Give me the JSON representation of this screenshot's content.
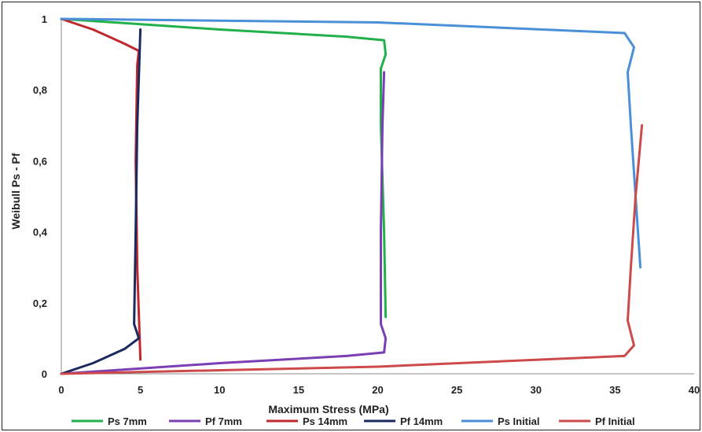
{
  "chart_data": {
    "type": "line",
    "title": "",
    "xlabel": "Maximum Stress  (MPa)",
    "ylabel": "Weibull Ps - Pf",
    "xlim": [
      0,
      40
    ],
    "ylim": [
      0,
      1
    ],
    "x_ticks": [
      "0",
      "5",
      "10",
      "15",
      "20",
      "25",
      "30",
      "35",
      "40"
    ],
    "y_ticks": [
      "0",
      "0,2",
      "0,4",
      "0,6",
      "0,8",
      "1"
    ],
    "grid": false,
    "legend_position": "bottom",
    "series": [
      {
        "name": "Ps 7mm",
        "color": "#22b04b",
        "points": [
          [
            0,
            1
          ],
          [
            10,
            0.97
          ],
          [
            18,
            0.95
          ],
          [
            20.4,
            0.94
          ],
          [
            20.5,
            0.9
          ],
          [
            20.2,
            0.86
          ],
          [
            20.2,
            0.7
          ],
          [
            20.4,
            0.4
          ],
          [
            20.5,
            0.16
          ]
        ]
      },
      {
        "name": "Pf 7mm",
        "color": "#7b3fb5",
        "points": [
          [
            0,
            0
          ],
          [
            10,
            0.03
          ],
          [
            18,
            0.05
          ],
          [
            20.4,
            0.06
          ],
          [
            20.5,
            0.1
          ],
          [
            20.2,
            0.14
          ],
          [
            20.2,
            0.4
          ],
          [
            20.3,
            0.7
          ],
          [
            20.4,
            0.85
          ]
        ]
      },
      {
        "name": "Ps 14mm",
        "color": "#c0282d",
        "points": [
          [
            0,
            1
          ],
          [
            2,
            0.97
          ],
          [
            4,
            0.93
          ],
          [
            4.9,
            0.91
          ],
          [
            4.8,
            0.87
          ],
          [
            4.7,
            0.6
          ],
          [
            4.8,
            0.3
          ],
          [
            5,
            0.04
          ]
        ]
      },
      {
        "name": "Pf 14mm",
        "color": "#1b2a5e",
        "points": [
          [
            0,
            0
          ],
          [
            2,
            0.03
          ],
          [
            4,
            0.07
          ],
          [
            4.9,
            0.1
          ],
          [
            4.6,
            0.14
          ],
          [
            4.7,
            0.4
          ],
          [
            4.8,
            0.7
          ],
          [
            5,
            0.97
          ]
        ]
      },
      {
        "name": "Ps Initial",
        "color": "#4a90d9",
        "points": [
          [
            0,
            1
          ],
          [
            20,
            0.99
          ],
          [
            35.6,
            0.96
          ],
          [
            36.2,
            0.92
          ],
          [
            35.8,
            0.85
          ],
          [
            36,
            0.7
          ],
          [
            36.3,
            0.5
          ],
          [
            36.6,
            0.3
          ]
        ]
      },
      {
        "name": "Pf Initial",
        "color": "#cc4a4a",
        "points": [
          [
            0,
            0
          ],
          [
            20,
            0.02
          ],
          [
            35.6,
            0.05
          ],
          [
            36.2,
            0.08
          ],
          [
            35.8,
            0.15
          ],
          [
            36,
            0.3
          ],
          [
            36.3,
            0.5
          ],
          [
            36.7,
            0.7
          ]
        ]
      }
    ]
  }
}
